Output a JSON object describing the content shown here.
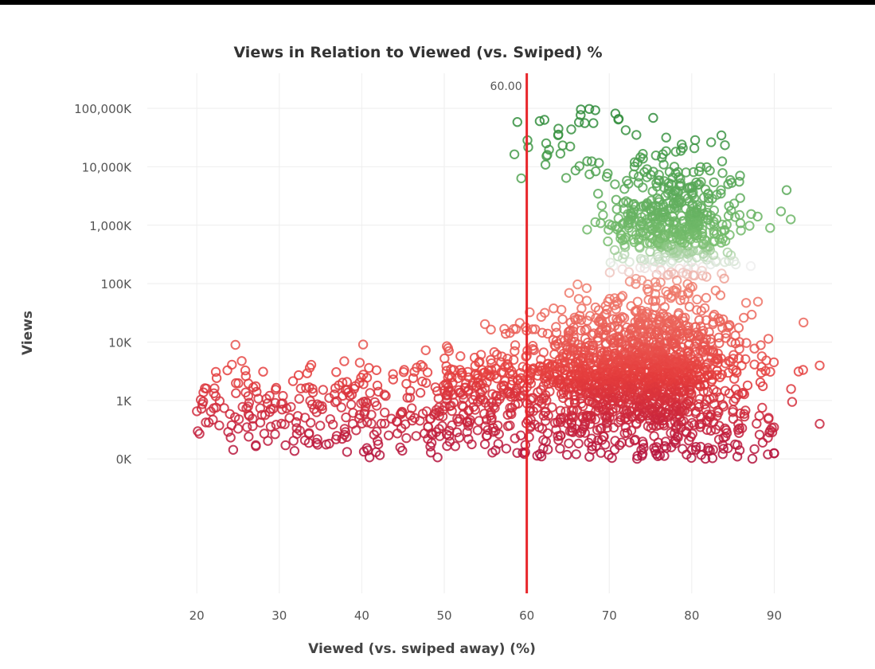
{
  "chart_data": {
    "type": "scatter",
    "title": "Views in Relation to Viewed (vs. Swiped) %",
    "xlabel": "Viewed (vs. swiped away) (%)",
    "ylabel": "Views",
    "xlim": [
      14,
      97
    ],
    "x_ticks": [
      20,
      30,
      40,
      50,
      60,
      70,
      80,
      90
    ],
    "y_ticks": [
      "0K",
      "1K",
      "10K",
      "100K",
      "1,000K",
      "10,000K",
      "100,000K"
    ],
    "y_scale": "log",
    "y_log_range": [
      -0.3,
      8.6
    ],
    "reference_line": {
      "x": 60,
      "label": "60.00",
      "color": "#e8262b"
    },
    "color_scale": {
      "low": "#b3123d",
      "mid_low": "#f08070",
      "mid": "#eeeeee",
      "high": "#2e8b3a"
    },
    "grid": true,
    "point_count_estimate": 2600
  }
}
